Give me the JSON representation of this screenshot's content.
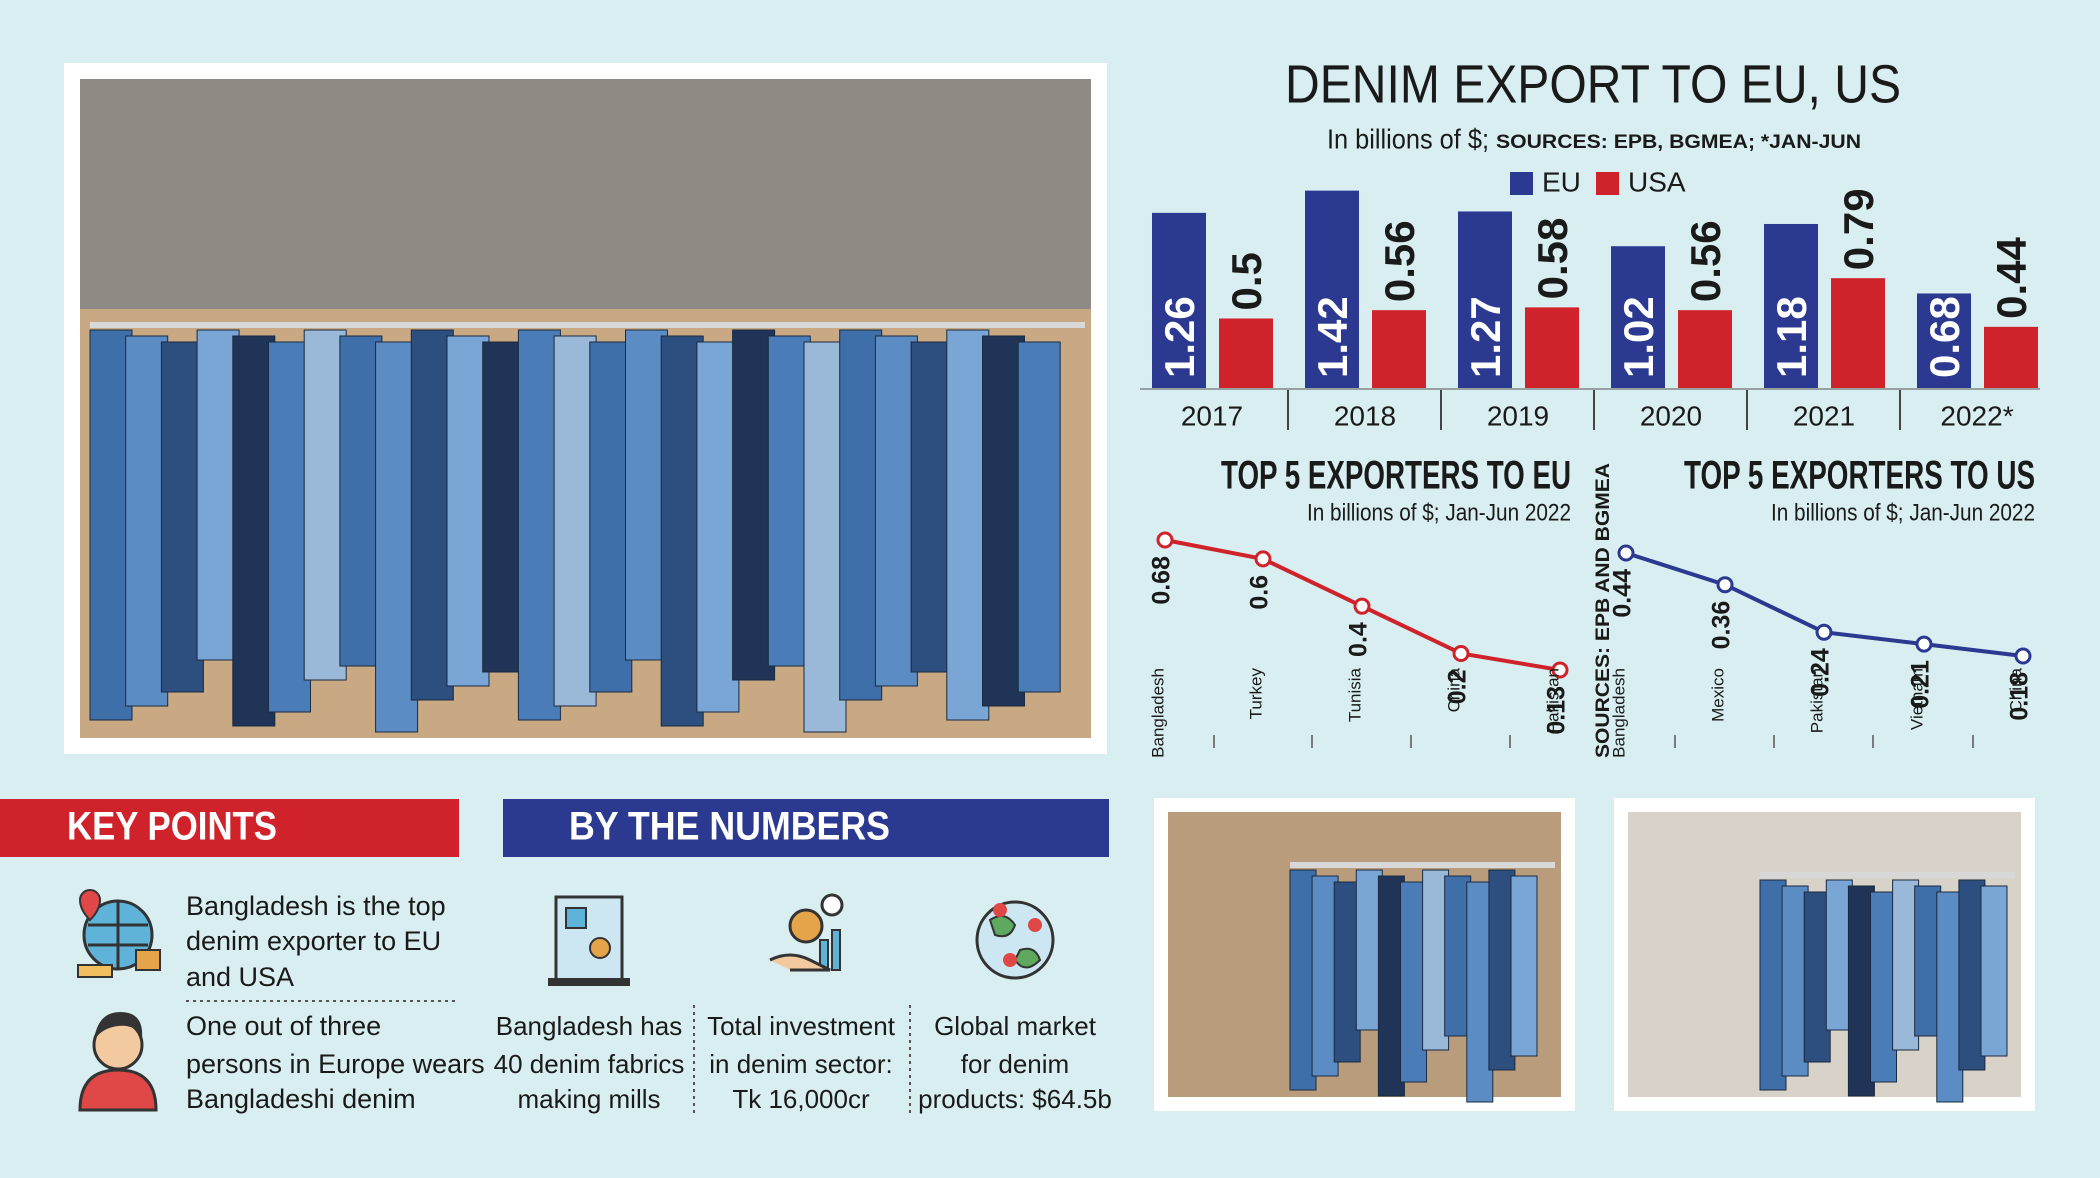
{
  "chart_data": [
    {
      "type": "bar",
      "title": "DENIM EXPORT TO EU, US",
      "subtitle": "In billions of $;",
      "source": "SOURCES: EPB, BGMEA; *JAN-JUN",
      "categories": [
        "2017",
        "2018",
        "2019",
        "2020",
        "2021",
        "2022*"
      ],
      "series": [
        {
          "name": "EU",
          "color": "#2b3990",
          "values": [
            1.26,
            1.42,
            1.27,
            1.02,
            1.18,
            0.68
          ]
        },
        {
          "name": "USA",
          "color": "#d0222a",
          "values": [
            0.5,
            0.56,
            0.58,
            0.56,
            0.79,
            0.44
          ]
        }
      ]
    },
    {
      "type": "line",
      "title": "TOP 5 EXPORTERS TO EU",
      "subtitle": "In billions of $; Jan-Jun 2022",
      "categories": [
        "Bangladesh",
        "Turkey",
        "Tunisia",
        "China",
        "Pakistan"
      ],
      "values": [
        0.68,
        0.6,
        0.4,
        0.2,
        0.13
      ],
      "color": "#d0222a"
    },
    {
      "type": "line",
      "title": "TOP 5 EXPORTERS TO US",
      "subtitle": "In billions of $; Jan-Jun 2022",
      "categories": [
        "Bangladesh",
        "Mexico",
        "Pakistan",
        "Vietnam",
        "China"
      ],
      "values": [
        0.44,
        0.36,
        0.24,
        0.21,
        0.18
      ],
      "color": "#2b3990"
    }
  ],
  "source_note": "SOURCES: EPB AND BGMEA",
  "key_points": {
    "title": "KEY POINTS",
    "items": [
      {
        "lines": [
          "Bangladesh is the top",
          "denim exporter to EU",
          "and USA"
        ]
      },
      {
        "lines": [
          "One out of three",
          "persons in Europe wears",
          "Bangladeshi denim"
        ]
      }
    ]
  },
  "by_the_numbers": {
    "title": "BY THE NUMBERS",
    "items": [
      {
        "lines": [
          "Bangladesh has",
          "40 denim fabrics",
          "making mills"
        ]
      },
      {
        "lines": [
          "Total investment",
          "in denim sector:",
          "Tk 16,000cr"
        ]
      },
      {
        "lines": [
          "Global market",
          "for denim",
          "products: $64.5b"
        ]
      }
    ]
  }
}
